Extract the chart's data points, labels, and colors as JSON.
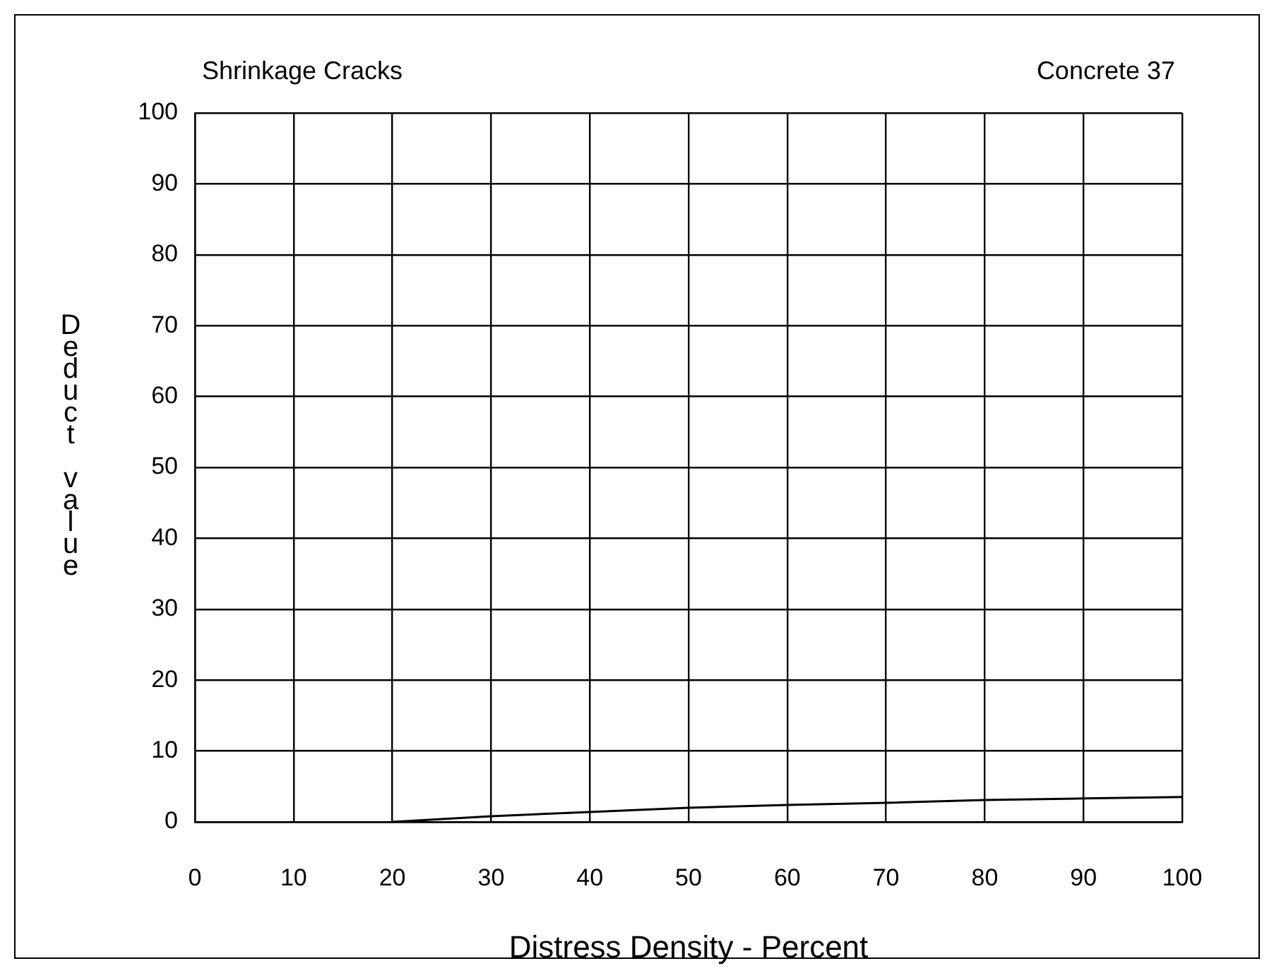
{
  "chart_data": {
    "type": "line",
    "title": "Shrinkage Cracks",
    "subtitle": "Concrete 37",
    "xlabel": "Distress Density - Percent",
    "ylabel": "Deduct value",
    "x": [
      20,
      30,
      40,
      50,
      60,
      70,
      80,
      90,
      100
    ],
    "series": [
      {
        "color": "#000000",
        "values": [
          0,
          0.8,
          1.4,
          2.0,
          2.4,
          2.7,
          3.1,
          3.3,
          3.5
        ]
      }
    ],
    "xlim": [
      0,
      100
    ],
    "xticks": [
      0,
      10,
      20,
      30,
      40,
      50,
      60,
      70,
      80,
      90,
      100
    ],
    "ylim": [
      0,
      100
    ],
    "yticks": [
      0,
      10,
      20,
      30,
      40,
      50,
      60,
      70,
      80,
      90,
      100
    ],
    "grid": true,
    "legend": false,
    "marker": "none",
    "line_style": "solid"
  }
}
